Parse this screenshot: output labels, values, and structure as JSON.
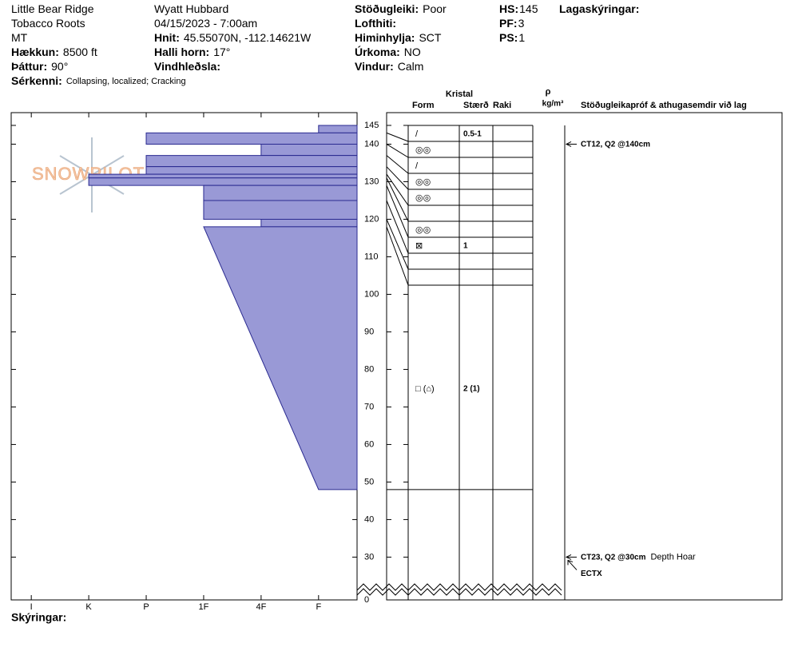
{
  "header": {
    "columns": [
      [
        {
          "value": "Little Bear Ridge"
        },
        {
          "value": "Tobacco Roots"
        },
        {
          "value": "MT"
        },
        {
          "label": "Hækkun:",
          "value": "8500 ft"
        },
        {
          "label": "Þáttur:",
          "value": "90°"
        },
        {
          "label": "Sérkenni:",
          "value": "Collapsing, localized;  Cracking"
        }
      ],
      [
        {
          "value": "Wyatt Hubbard"
        },
        {
          "value": "04/15/2023 - 7:00am"
        },
        {
          "label": "Hnit:",
          "value": "45.55070N, -112.14621W"
        },
        {
          "label": "Halli horn:",
          "value": "17°"
        },
        {
          "label": "Vindhleðsla:"
        }
      ],
      [
        {
          "label": "Stöðugleiki:",
          "value": "Poor"
        },
        {
          "label": "Lofthiti:"
        },
        {
          "label": "Himinhylja:",
          "value": "SCT"
        },
        {
          "label": "Úrkoma:",
          "value": "NO"
        },
        {
          "label": "Vindur:",
          "value": "Calm"
        }
      ],
      [
        {
          "label": "HS:",
          "value": "145"
        },
        {
          "label": "PF:",
          "value": "3"
        },
        {
          "label": "PS:",
          "value": "1"
        }
      ],
      [
        {
          "label": "Lagaskýringar:"
        }
      ]
    ]
  },
  "logo": "SNOWPILOT",
  "chart_data": {
    "type": "snow-profile",
    "ylim": [
      18.6,
      148.4
    ],
    "yticks": [
      145,
      140,
      130,
      120,
      110,
      100,
      90,
      80,
      70,
      60,
      50,
      40,
      30,
      0
    ],
    "axis_break": true,
    "xlim": [
      6.35,
      0.33
    ],
    "xticks": [
      {
        "value": 6,
        "label": "I"
      },
      {
        "value": 5,
        "label": "K"
      },
      {
        "value": 4,
        "label": "P"
      },
      {
        "value": 3,
        "label": "1F"
      },
      {
        "value": 2,
        "label": "4F"
      },
      {
        "value": 1,
        "label": "F"
      }
    ],
    "color": "#9999d6",
    "columns": {
      "crystal": "Kristal",
      "form": "Form",
      "size": "Stærð",
      "moisture": "Raki",
      "density": "ρ",
      "density_unit": "kg/m³",
      "comments": "Stöðugleikapróf & athugasemdir við lag"
    },
    "layers": [
      {
        "top": 145,
        "bottom": 143,
        "hardness": 1,
        "form": "/",
        "size": "0.5-1"
      },
      {
        "top": 143,
        "bottom": 140,
        "hardness": 4,
        "form": "◎◎"
      },
      {
        "top": 140,
        "bottom": 137,
        "hardness": 2,
        "form": "/"
      },
      {
        "top": 137,
        "bottom": 134,
        "hardness": 4,
        "form": "◎◎"
      },
      {
        "top": 134,
        "bottom": 132,
        "hardness": 4,
        "form": "◎◎"
      },
      {
        "top": 132,
        "bottom": 131,
        "hardness": 5
      },
      {
        "top": 131,
        "bottom": 129,
        "hardness": 5,
        "form": "◎◎"
      },
      {
        "top": 129,
        "bottom": 125,
        "hardness": 3,
        "form": "⊠",
        "size": "1"
      },
      {
        "top": 125,
        "bottom": 120,
        "hardness": 3
      },
      {
        "top": 120,
        "bottom": 118,
        "hardness": 2
      },
      {
        "top": 118,
        "bottom": 48,
        "hardness": 3,
        "hardness_bottom": 1,
        "form": "□ (⌂)",
        "size": "2 (1)"
      }
    ],
    "tests": [
      {
        "depth": 140,
        "result": "CT12, Q2 @140cm"
      },
      {
        "depth": 30,
        "result": "CT23, Q2 @30cm",
        "comment": "Depth Hoar",
        "extra": "ECTX"
      }
    ],
    "footer": "Skýringar:"
  }
}
